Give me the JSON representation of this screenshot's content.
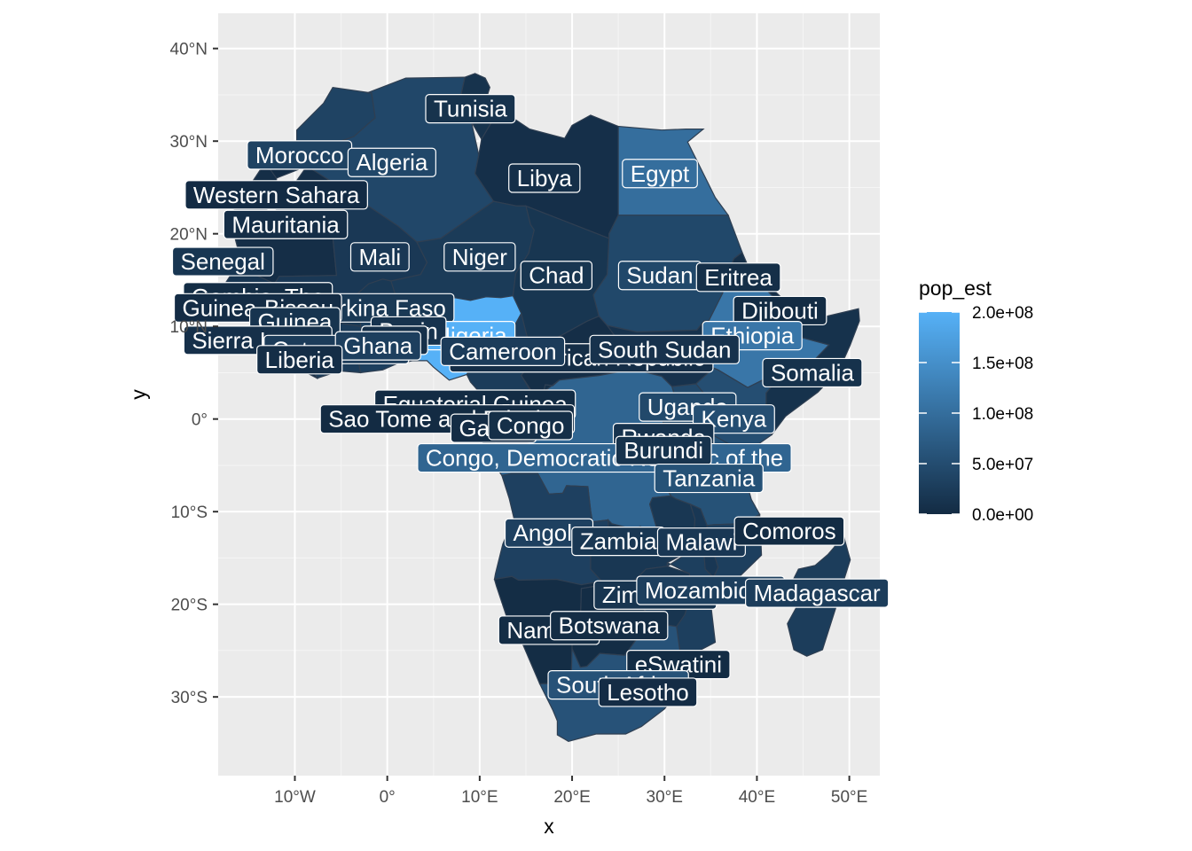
{
  "chart_data": {
    "type": "map",
    "region": "Africa",
    "xlabel": "x",
    "ylabel": "y",
    "fill_variable": "pop_est",
    "xlim": [
      -18.3,
      53.3
    ],
    "ylim": [
      -38.5,
      43.8
    ],
    "x_ticks": [
      {
        "value": -10,
        "label": "10°W"
      },
      {
        "value": 0,
        "label": "0°"
      },
      {
        "value": 10,
        "label": "10°E"
      },
      {
        "value": 20,
        "label": "20°E"
      },
      {
        "value": 30,
        "label": "30°E"
      },
      {
        "value": 40,
        "label": "40°E"
      },
      {
        "value": 50,
        "label": "50°E"
      }
    ],
    "y_ticks": [
      {
        "value": 40,
        "label": "40°N"
      },
      {
        "value": 30,
        "label": "30°N"
      },
      {
        "value": 20,
        "label": "20°N"
      },
      {
        "value": 10,
        "label": "10°N"
      },
      {
        "value": 0,
        "label": "0°"
      },
      {
        "value": -10,
        "label": "10°S"
      },
      {
        "value": -20,
        "label": "20°S"
      },
      {
        "value": -30,
        "label": "30°S"
      }
    ],
    "legend": {
      "title": "pop_est",
      "min": 0,
      "max": 200000000,
      "low_color": "#132B43",
      "high_color": "#56B1F7",
      "breaks": [
        {
          "value": 200000000,
          "label": "2.0e+08"
        },
        {
          "value": 150000000,
          "label": "1.5e+08"
        },
        {
          "value": 100000000,
          "label": "1.0e+08"
        },
        {
          "value": 50000000,
          "label": "5.0e+07"
        },
        {
          "value": 0,
          "label": "0.0e+00"
        }
      ]
    },
    "countries": [
      {
        "label": "Tunisia",
        "lon": 9.0,
        "lat": 33.5,
        "pop": 11500000
      },
      {
        "label": "Morocco",
        "lon": -9.5,
        "lat": 28.5,
        "pop": 36000000
      },
      {
        "label": "Algeria",
        "lon": 0.5,
        "lat": 27.7,
        "pop": 42000000
      },
      {
        "label": "Libya",
        "lon": 17.0,
        "lat": 26.0,
        "pop": 6700000
      },
      {
        "label": "Egypt",
        "lon": 29.5,
        "lat": 26.5,
        "pop": 100000000
      },
      {
        "label": "Western Sahara",
        "lon": -12.0,
        "lat": 24.2,
        "pop": 600000
      },
      {
        "label": "Mauritania",
        "lon": -11.0,
        "lat": 21.0,
        "pop": 4500000
      },
      {
        "label": "Mali",
        "lon": -0.8,
        "lat": 17.5,
        "pop": 19600000
      },
      {
        "label": "Niger",
        "lon": 10.0,
        "lat": 17.5,
        "pop": 23300000
      },
      {
        "label": "Senegal",
        "lon": -17.8,
        "lat": 17.0,
        "pop": 16300000
      },
      {
        "label": "Chad",
        "lon": 18.3,
        "lat": 15.5,
        "pop": 15900000
      },
      {
        "label": "Sudan",
        "lon": 29.5,
        "lat": 15.5,
        "pop": 42800000
      },
      {
        "label": "Eritrea",
        "lon": 38.0,
        "lat": 15.3,
        "pop": 6000000
      },
      {
        "label": "Gambia, The",
        "lon": -14.0,
        "lat": 13.2,
        "pop": 2300000
      },
      {
        "label": "Burkina Faso",
        "lon": -1.0,
        "lat": 12.0,
        "pop": 20300000
      },
      {
        "label": "Guinea-Bissau",
        "lon": -14.0,
        "lat": 12.0,
        "pop": 1900000
      },
      {
        "label": "Djibouti",
        "lon": 42.5,
        "lat": 11.7,
        "pop": 970000
      },
      {
        "label": "Guinea",
        "lon": -10.0,
        "lat": 10.5,
        "pop": 12800000
      },
      {
        "label": "Nigeria",
        "lon": 9.0,
        "lat": 9.0,
        "pop": 200000000
      },
      {
        "label": "Ethiopia",
        "lon": 39.5,
        "lat": 9.0,
        "pop": 112000000
      },
      {
        "label": "Sierra Leone",
        "lon": -14.0,
        "lat": 8.5,
        "pop": 7800000
      },
      {
        "label": "Benin",
        "lon": 2.3,
        "lat": 9.5,
        "pop": 11800000
      },
      {
        "label": "Togo",
        "lon": 0.8,
        "lat": 8.5,
        "pop": 8100000
      },
      {
        "label": "Central African Republic",
        "lon": 21.0,
        "lat": 6.6,
        "pop": 4700000
      },
      {
        "label": "South Sudan",
        "lon": 30.0,
        "lat": 7.5,
        "pop": 11000000
      },
      {
        "label": "Cote d'Ivoire",
        "lon": -5.5,
        "lat": 7.5,
        "pop": 25700000
      },
      {
        "label": "Ghana",
        "lon": -1.0,
        "lat": 7.9,
        "pop": 30400000
      },
      {
        "label": "Cameroon",
        "lon": 12.5,
        "lat": 7.3,
        "pop": 25900000
      },
      {
        "label": "Liberia",
        "lon": -9.5,
        "lat": 6.4,
        "pop": 4900000
      },
      {
        "label": "Somalia",
        "lon": 46.0,
        "lat": 5.0,
        "pop": 10200000
      },
      {
        "label": "Equatorial Guinea",
        "lon": 9.5,
        "lat": 1.6,
        "pop": 1400000
      },
      {
        "label": "Uganda",
        "lon": 32.5,
        "lat": 1.3,
        "pop": 44300000
      },
      {
        "label": "Kenya",
        "lon": 37.5,
        "lat": 0.0,
        "pop": 52500000
      },
      {
        "label": "Sao Tome and Principe",
        "lon": 6.5,
        "lat": 0.0,
        "pop": 215000
      },
      {
        "label": "Gabon",
        "lon": 11.5,
        "lat": -1.0,
        "pop": 2200000
      },
      {
        "label": "Congo",
        "lon": 15.5,
        "lat": -0.7,
        "pop": 5400000
      },
      {
        "label": "Rwanda",
        "lon": 29.9,
        "lat": -2.0,
        "pop": 12600000
      },
      {
        "label": "Congo, Democratic Republic of the",
        "lon": 23.5,
        "lat": -4.2,
        "pop": 86800000
      },
      {
        "label": "Burundi",
        "lon": 29.9,
        "lat": -3.4,
        "pop": 11500000
      },
      {
        "label": "Tanzania",
        "lon": 34.8,
        "lat": -6.4,
        "pop": 58000000
      },
      {
        "label": "Angola",
        "lon": 17.5,
        "lat": -12.3,
        "pop": 31800000
      },
      {
        "label": "Zambia",
        "lon": 25.0,
        "lat": -13.2,
        "pop": 17900000
      },
      {
        "label": "Malawi",
        "lon": 34.0,
        "lat": -13.3,
        "pop": 18600000
      },
      {
        "label": "Comoros",
        "lon": 43.5,
        "lat": -12.1,
        "pop": 850000
      },
      {
        "label": "Zimbabwe",
        "lon": 29.0,
        "lat": -19.0,
        "pop": 14600000
      },
      {
        "label": "Mozambique",
        "lon": 35.0,
        "lat": -18.5,
        "pop": 30400000
      },
      {
        "label": "Madagascar",
        "lon": 46.5,
        "lat": -18.8,
        "pop": 27000000
      },
      {
        "label": "Namibia",
        "lon": 17.5,
        "lat": -22.8,
        "pop": 2500000
      },
      {
        "label": "Botswana",
        "lon": 24.0,
        "lat": -22.3,
        "pop": 2300000
      },
      {
        "label": "eSwatini",
        "lon": 31.5,
        "lat": -26.5,
        "pop": 1100000
      },
      {
        "label": "South Africa",
        "lon": 25.0,
        "lat": -28.7,
        "pop": 58600000
      },
      {
        "label": "Lesotho",
        "lon": 28.2,
        "lat": -29.5,
        "pop": 2100000
      }
    ]
  }
}
